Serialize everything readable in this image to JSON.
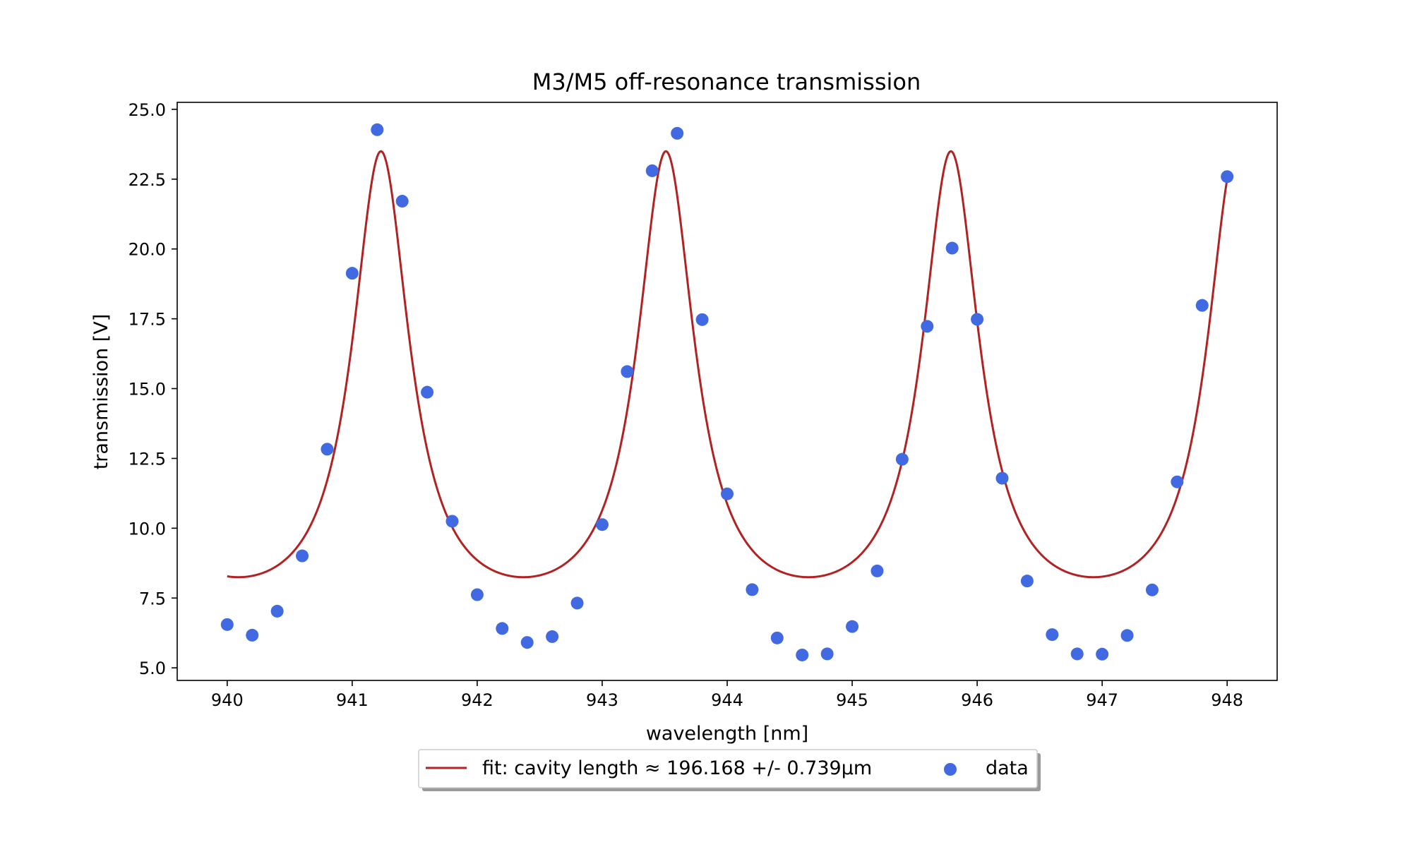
{
  "chart_data": {
    "type": "scatter",
    "title": "M3/M5 off-resonance transmission",
    "xlabel": "wavelength [nm]",
    "ylabel": "transmission [V]",
    "xlim": [
      939.6,
      948.4
    ],
    "ylim": [
      4.55,
      25.25
    ],
    "x_ticks": [
      940,
      941,
      942,
      943,
      944,
      945,
      946,
      947,
      948
    ],
    "x_tick_labels": [
      "940",
      "941",
      "942",
      "943",
      "944",
      "945",
      "946",
      "947",
      "948"
    ],
    "y_ticks": [
      5.0,
      7.5,
      10.0,
      12.5,
      15.0,
      17.5,
      20.0,
      22.5,
      25.0
    ],
    "y_tick_labels": [
      "5.0",
      "7.5",
      "10.0",
      "12.5",
      "15.0",
      "17.5",
      "20.0",
      "22.5",
      "25.0"
    ],
    "grid": false,
    "legend_position": "bottom-center-outside",
    "series": [
      {
        "name": "fit: cavity length ≈ 196.168 +/- 0.739µm",
        "kind": "line",
        "color": "#b22222",
        "model": {
          "form": "offset + amplitude / (1 + F * sin^2(pi * (wavelength - peak) / FSR))",
          "offset": 5.9,
          "amplitude": 17.6,
          "F": 6.5,
          "peak": 941.23,
          "FSR": 2.28,
          "x_range": [
            940.0,
            948.0
          ]
        }
      },
      {
        "name": "data",
        "kind": "scatter",
        "color": "#4169e1",
        "x": [
          940.0,
          940.2,
          940.4,
          940.6,
          940.8,
          941.0,
          941.2,
          941.4,
          941.6,
          941.8,
          942.0,
          942.2,
          942.4,
          942.6,
          942.8,
          943.0,
          943.2,
          943.4,
          943.6,
          943.8,
          944.0,
          944.2,
          944.4,
          944.6,
          944.8,
          945.0,
          945.2,
          945.4,
          945.6,
          945.8,
          946.0,
          946.2,
          946.4,
          946.6,
          946.8,
          947.0,
          947.2,
          947.4,
          947.6,
          947.8,
          948.0
        ],
        "y": [
          6.55,
          6.17,
          7.03,
          9.01,
          12.83,
          19.13,
          24.27,
          21.71,
          14.87,
          10.25,
          7.62,
          6.41,
          5.91,
          6.12,
          7.32,
          10.13,
          15.61,
          22.8,
          24.14,
          17.47,
          11.23,
          7.8,
          6.07,
          5.46,
          5.5,
          6.48,
          8.47,
          12.47,
          17.23,
          20.03,
          17.48,
          11.79,
          8.11,
          6.19,
          5.5,
          5.49,
          6.16,
          7.79,
          11.66,
          17.98,
          22.59
        ]
      }
    ]
  }
}
